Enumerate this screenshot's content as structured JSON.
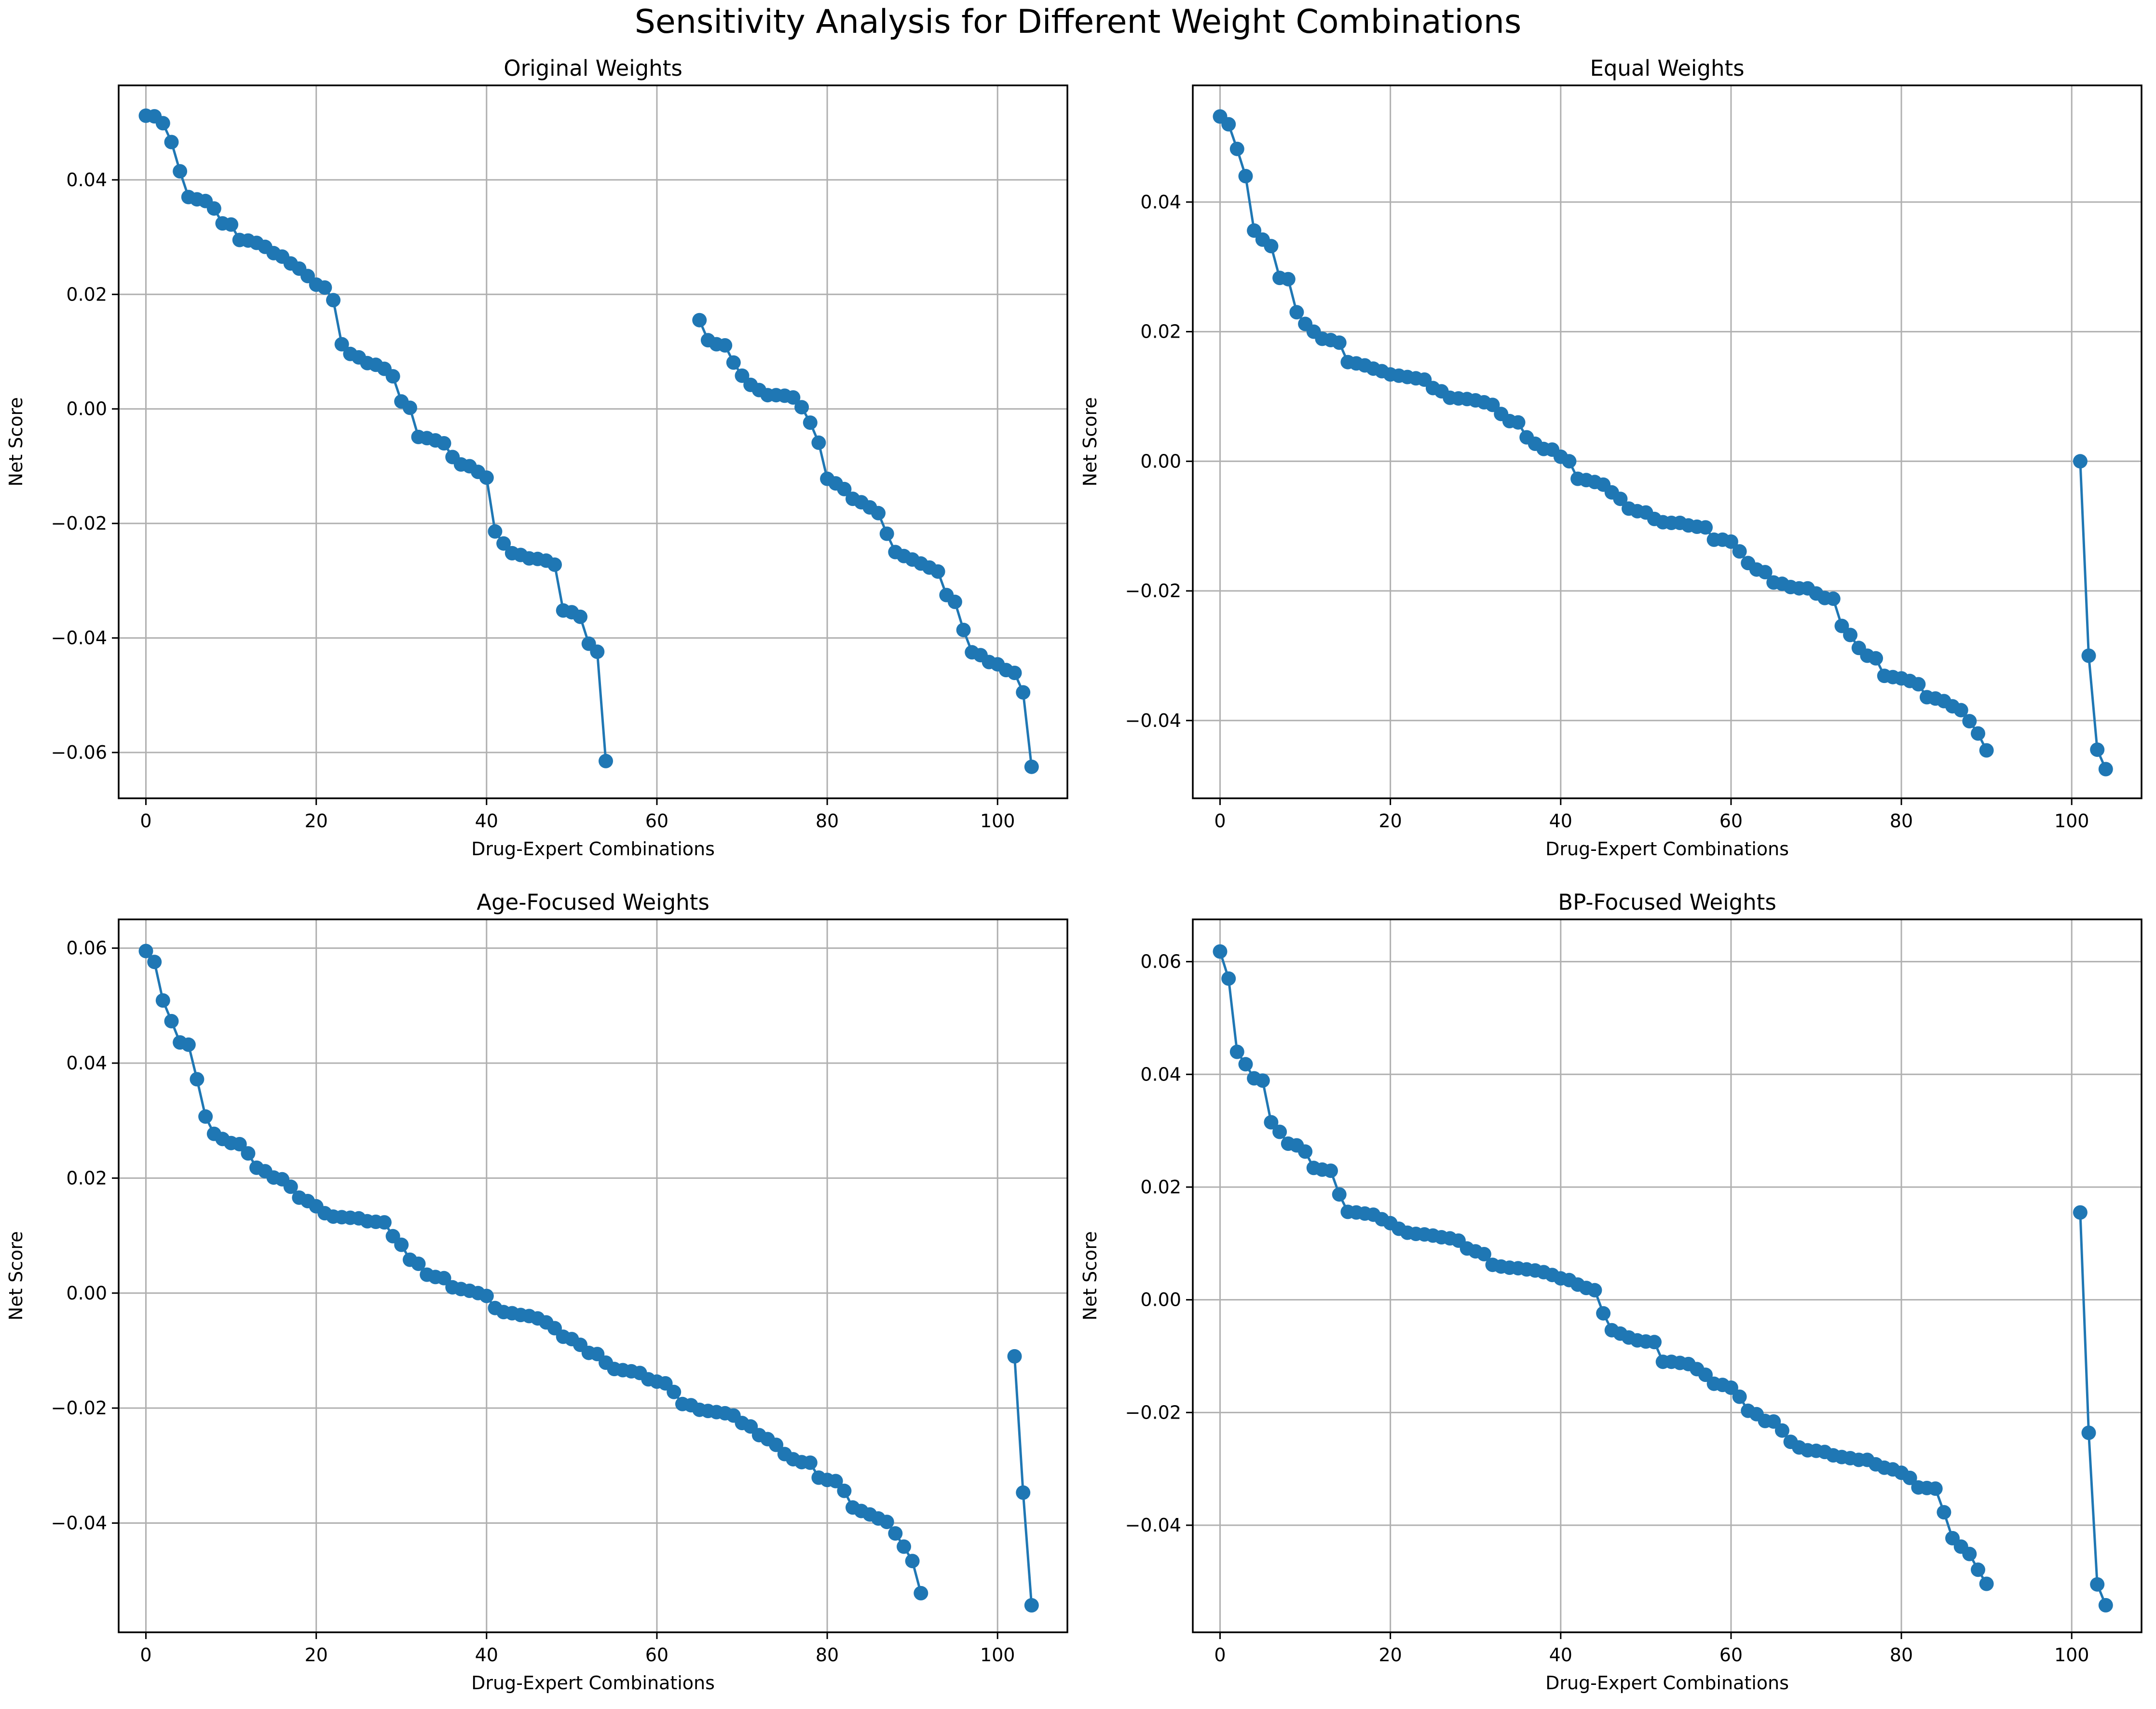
{
  "figure": {
    "title": "Sensitivity Analysis for Different Weight Combinations"
  },
  "style": {
    "line_color": "#1f77b4",
    "grid_color": "#b0b0b0"
  },
  "chart_data": [
    {
      "type": "line",
      "title": "Original Weights",
      "xlabel": "Drug-Expert Combinations",
      "ylabel": "Net Score",
      "xlim": [
        -3.2,
        108.2
      ],
      "ylim": [
        -0.068,
        0.0565
      ],
      "xticks": [
        0,
        20,
        40,
        60,
        80,
        100
      ],
      "yticks": [
        -0.06,
        -0.04,
        -0.02,
        0.0,
        0.02,
        0.04
      ],
      "ytick_labels": [
        "−0.06",
        "−0.04",
        "−0.02",
        "0.00",
        "0.02",
        "0.04"
      ],
      "grid": true,
      "marker": "circle",
      "x": [
        0,
        1,
        2,
        3,
        4,
        5,
        6,
        7,
        8,
        9,
        10,
        11,
        12,
        13,
        14,
        15,
        16,
        17,
        18,
        19,
        20,
        21,
        22,
        23,
        24,
        25,
        26,
        27,
        28,
        29,
        30,
        31,
        32,
        33,
        34,
        35,
        36,
        37,
        38,
        39,
        40,
        41,
        42,
        43,
        44,
        45,
        46,
        47,
        48,
        49,
        50,
        51,
        52,
        53,
        54,
        65,
        66,
        67,
        68,
        69,
        70,
        71,
        72,
        73,
        74,
        75,
        76,
        77,
        78,
        79,
        80,
        81,
        82,
        83,
        84,
        85,
        86,
        87,
        88,
        89,
        90,
        91,
        92,
        93,
        94,
        95,
        96,
        97,
        98,
        99,
        100,
        101,
        102,
        103,
        104
      ],
      "y": [
        0.0512,
        0.0511,
        0.0499,
        0.0466,
        0.0415,
        0.037,
        0.0366,
        0.0363,
        0.035,
        0.0324,
        0.0322,
        0.0295,
        0.0294,
        0.029,
        0.0283,
        0.0272,
        0.0266,
        0.0254,
        0.0245,
        0.0232,
        0.0217,
        0.0212,
        0.019,
        0.0113,
        0.0096,
        0.009,
        0.008,
        0.0077,
        0.007,
        0.0057,
        0.0013,
        0.0002,
        -0.0049,
        -0.0051,
        -0.0055,
        -0.006,
        -0.0084,
        -0.0097,
        -0.01,
        -0.011,
        -0.012,
        -0.0214,
        -0.0235,
        -0.0252,
        -0.0255,
        -0.0261,
        -0.0262,
        -0.0265,
        -0.0272,
        -0.0352,
        -0.0355,
        -0.0363,
        -0.041,
        -0.0424,
        -0.0615,
        0.0155,
        0.012,
        0.0113,
        0.0111,
        0.0081,
        0.0058,
        0.0042,
        0.0033,
        0.0024,
        0.0024,
        0.0023,
        0.002,
        0.0003,
        -0.0024,
        -0.0059,
        -0.0122,
        -0.013,
        -0.014,
        -0.0157,
        -0.0163,
        -0.0172,
        -0.0182,
        -0.0218,
        -0.025,
        -0.0257,
        -0.0263,
        -0.027,
        -0.0277,
        -0.0284,
        -0.0325,
        -0.0337,
        -0.0386,
        -0.0425,
        -0.043,
        -0.0442,
        -0.0446,
        -0.0456,
        -0.0461,
        -0.0495,
        -0.0625
      ]
    },
    {
      "type": "line",
      "title": "Equal Weights",
      "xlabel": "Drug-Expert Combinations",
      "ylabel": "Net Score",
      "xlim": [
        -3.2,
        108.2
      ],
      "ylim": [
        -0.052,
        0.058
      ],
      "xticks": [
        0,
        20,
        40,
        60,
        80,
        100
      ],
      "yticks": [
        -0.04,
        -0.02,
        0.0,
        0.02,
        0.04
      ],
      "ytick_labels": [
        "−0.04",
        "−0.02",
        "0.00",
        "0.02",
        "0.04"
      ],
      "grid": true,
      "marker": "circle",
      "x": [
        0,
        1,
        2,
        3,
        4,
        5,
        6,
        7,
        8,
        9,
        10,
        11,
        12,
        13,
        14,
        15,
        16,
        17,
        18,
        19,
        20,
        21,
        22,
        23,
        24,
        25,
        26,
        27,
        28,
        29,
        30,
        31,
        32,
        33,
        34,
        35,
        36,
        37,
        38,
        39,
        40,
        41,
        42,
        43,
        44,
        45,
        46,
        47,
        48,
        49,
        50,
        51,
        52,
        53,
        54,
        55,
        56,
        57,
        58,
        59,
        60,
        61,
        62,
        63,
        64,
        65,
        66,
        67,
        68,
        69,
        70,
        71,
        72,
        73,
        74,
        75,
        76,
        77,
        78,
        79,
        80,
        81,
        82,
        83,
        84,
        85,
        86,
        87,
        88,
        89,
        90,
        101,
        102,
        103,
        104
      ],
      "y": [
        0.0532,
        0.052,
        0.0482,
        0.044,
        0.0356,
        0.0342,
        0.0332,
        0.0283,
        0.0281,
        0.023,
        0.0212,
        0.02,
        0.0189,
        0.0187,
        0.0183,
        0.0153,
        0.0151,
        0.0148,
        0.0143,
        0.0139,
        0.0134,
        0.0132,
        0.013,
        0.0128,
        0.0126,
        0.0113,
        0.0108,
        0.0098,
        0.0097,
        0.0096,
        0.0094,
        0.0091,
        0.0087,
        0.0073,
        0.0062,
        0.006,
        0.0037,
        0.0027,
        0.0019,
        0.0018,
        0.0007,
        0.0,
        -0.0027,
        -0.0029,
        -0.0032,
        -0.0036,
        -0.0048,
        -0.0058,
        -0.0073,
        -0.0077,
        -0.0079,
        -0.0089,
        -0.0094,
        -0.0095,
        -0.0095,
        -0.0099,
        -0.0101,
        -0.0102,
        -0.0121,
        -0.0121,
        -0.0124,
        -0.0139,
        -0.0157,
        -0.0167,
        -0.0171,
        -0.0187,
        -0.0189,
        -0.0194,
        -0.0196,
        -0.0196,
        -0.0204,
        -0.0211,
        -0.0212,
        -0.0254,
        -0.0268,
        -0.0288,
        -0.03,
        -0.0304,
        -0.0331,
        -0.0333,
        -0.0335,
        -0.0339,
        -0.0344,
        -0.0364,
        -0.0366,
        -0.037,
        -0.0378,
        -0.0384,
        -0.0401,
        -0.042,
        -0.0446,
        0.0,
        -0.03,
        -0.0445,
        -0.0475
      ]
    },
    {
      "type": "line",
      "title": "Age-Focused Weights",
      "xlabel": "Drug-Expert Combinations",
      "ylabel": "Net Score",
      "xlim": [
        -3.2,
        108.2
      ],
      "ylim": [
        -0.059,
        0.065
      ],
      "xticks": [
        0,
        20,
        40,
        60,
        80,
        100
      ],
      "yticks": [
        -0.04,
        -0.02,
        0.0,
        0.02,
        0.04,
        0.06
      ],
      "ytick_labels": [
        "−0.04",
        "−0.02",
        "0.00",
        "0.02",
        "0.04",
        "0.06"
      ],
      "grid": true,
      "marker": "circle",
      "x": [
        0,
        1,
        2,
        3,
        4,
        5,
        6,
        7,
        8,
        9,
        10,
        11,
        12,
        13,
        14,
        15,
        16,
        17,
        18,
        19,
        20,
        21,
        22,
        23,
        24,
        25,
        26,
        27,
        28,
        29,
        30,
        31,
        32,
        33,
        34,
        35,
        36,
        37,
        38,
        39,
        40,
        41,
        42,
        43,
        44,
        45,
        46,
        47,
        48,
        49,
        50,
        51,
        52,
        53,
        54,
        55,
        56,
        57,
        58,
        59,
        60,
        61,
        62,
        63,
        64,
        65,
        66,
        67,
        68,
        69,
        70,
        71,
        72,
        73,
        74,
        75,
        76,
        77,
        78,
        79,
        80,
        81,
        82,
        83,
        84,
        85,
        86,
        87,
        88,
        89,
        90,
        91,
        102,
        103,
        104
      ],
      "y": [
        0.0595,
        0.0576,
        0.0509,
        0.0473,
        0.0436,
        0.0432,
        0.0372,
        0.0307,
        0.0277,
        0.0268,
        0.0261,
        0.0259,
        0.0243,
        0.0218,
        0.0212,
        0.0201,
        0.0198,
        0.0185,
        0.0166,
        0.016,
        0.0151,
        0.0139,
        0.0133,
        0.0132,
        0.0131,
        0.013,
        0.0125,
        0.0124,
        0.0123,
        0.0099,
        0.0084,
        0.0058,
        0.0051,
        0.0032,
        0.0028,
        0.0026,
        0.001,
        0.0007,
        0.0004,
        0.0,
        -0.0005,
        -0.0026,
        -0.0033,
        -0.0035,
        -0.0038,
        -0.004,
        -0.0044,
        -0.0051,
        -0.0061,
        -0.0076,
        -0.008,
        -0.009,
        -0.0104,
        -0.0106,
        -0.0121,
        -0.0132,
        -0.0134,
        -0.0136,
        -0.0139,
        -0.015,
        -0.0154,
        -0.0157,
        -0.0172,
        -0.0193,
        -0.0195,
        -0.0203,
        -0.0205,
        -0.0207,
        -0.0209,
        -0.0213,
        -0.0226,
        -0.0232,
        -0.0247,
        -0.0254,
        -0.0264,
        -0.028,
        -0.0289,
        -0.0294,
        -0.0295,
        -0.0321,
        -0.0325,
        -0.0327,
        -0.0344,
        -0.0373,
        -0.0379,
        -0.0385,
        -0.0392,
        -0.0398,
        -0.0418,
        -0.0441,
        -0.0466,
        -0.0522,
        -0.011,
        -0.0347,
        -0.0543
      ]
    },
    {
      "type": "line",
      "title": "BP-Focused Weights",
      "xlabel": "Drug-Expert Combinations",
      "ylabel": "Net Score",
      "xlim": [
        -3.2,
        108.2
      ],
      "ylim": [
        -0.059,
        0.0675
      ],
      "xticks": [
        0,
        20,
        40,
        60,
        80,
        100
      ],
      "yticks": [
        -0.04,
        -0.02,
        0.0,
        0.02,
        0.04,
        0.06
      ],
      "ytick_labels": [
        "−0.04",
        "−0.02",
        "0.00",
        "0.02",
        "0.04",
        "0.06"
      ],
      "grid": true,
      "marker": "circle",
      "x": [
        0,
        1,
        2,
        3,
        4,
        5,
        6,
        7,
        8,
        9,
        10,
        11,
        12,
        13,
        14,
        15,
        16,
        17,
        18,
        19,
        20,
        21,
        22,
        23,
        24,
        25,
        26,
        27,
        28,
        29,
        30,
        31,
        32,
        33,
        34,
        35,
        36,
        37,
        38,
        39,
        40,
        41,
        42,
        43,
        44,
        45,
        46,
        47,
        48,
        49,
        50,
        51,
        52,
        53,
        54,
        55,
        56,
        57,
        58,
        59,
        60,
        61,
        62,
        63,
        64,
        65,
        66,
        67,
        68,
        69,
        70,
        71,
        72,
        73,
        74,
        75,
        76,
        77,
        78,
        79,
        80,
        81,
        82,
        83,
        84,
        85,
        86,
        87,
        88,
        89,
        90,
        101,
        102,
        103,
        104
      ],
      "y": [
        0.0618,
        0.057,
        0.044,
        0.0418,
        0.0393,
        0.0389,
        0.0315,
        0.0298,
        0.0277,
        0.0274,
        0.0263,
        0.0234,
        0.0231,
        0.0229,
        0.0187,
        0.0156,
        0.0155,
        0.0153,
        0.0151,
        0.0143,
        0.0136,
        0.0126,
        0.0119,
        0.0117,
        0.0116,
        0.0114,
        0.0111,
        0.0109,
        0.0105,
        0.0091,
        0.0086,
        0.0081,
        0.0062,
        0.0059,
        0.0057,
        0.0056,
        0.0054,
        0.0052,
        0.0049,
        0.0044,
        0.0038,
        0.0035,
        0.0027,
        0.0021,
        0.0017,
        -0.0024,
        -0.0054,
        -0.006,
        -0.0067,
        -0.0072,
        -0.0074,
        -0.0075,
        -0.011,
        -0.011,
        -0.0112,
        -0.0114,
        -0.0123,
        -0.0133,
        -0.0149,
        -0.0151,
        -0.0156,
        -0.0172,
        -0.0197,
        -0.0203,
        -0.0215,
        -0.0216,
        -0.0232,
        -0.0252,
        -0.0262,
        -0.0267,
        -0.0268,
        -0.027,
        -0.0276,
        -0.0279,
        -0.0281,
        -0.0284,
        -0.0284,
        -0.0292,
        -0.0298,
        -0.0301,
        -0.0307,
        -0.0316,
        -0.0333,
        -0.0334,
        -0.0335,
        -0.0377,
        -0.0423,
        -0.0438,
        -0.0451,
        -0.0479,
        -0.0504,
        0.0155,
        -0.0236,
        -0.0505,
        -0.0542
      ]
    }
  ]
}
